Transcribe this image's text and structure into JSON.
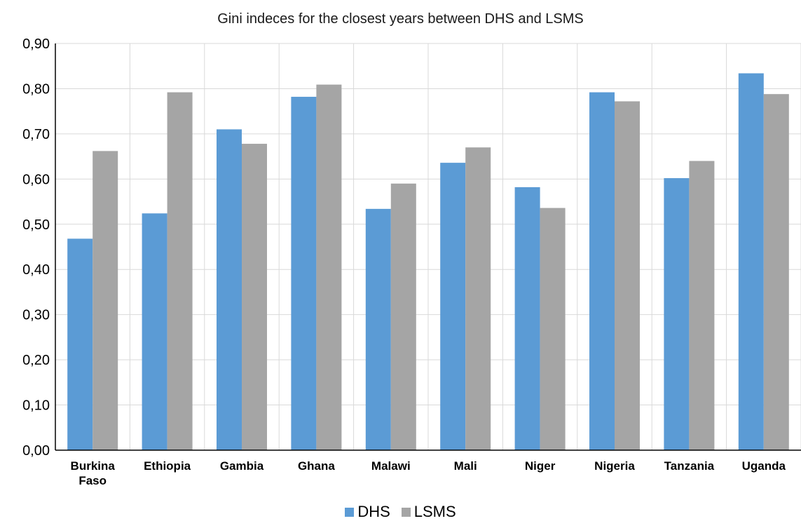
{
  "chart_data": {
    "type": "bar",
    "title": "Gini indeces for the closest years between DHS and LSMS",
    "categories": [
      "Burkina\nFaso",
      "Ethiopia",
      "Gambia",
      "Ghana",
      "Malawi",
      "Mali",
      "Niger",
      "Nigeria",
      "Tanzania",
      "Uganda"
    ],
    "series": [
      {
        "name": "DHS",
        "color": "#5b9bd5",
        "values": [
          0.468,
          0.524,
          0.71,
          0.782,
          0.534,
          0.636,
          0.582,
          0.792,
          0.602,
          0.834
        ]
      },
      {
        "name": "LSMS",
        "color": "#a5a5a5",
        "values": [
          0.662,
          0.792,
          0.678,
          0.809,
          0.59,
          0.67,
          0.536,
          0.772,
          0.64,
          0.788
        ]
      }
    ],
    "ylim": [
      0,
      0.9
    ],
    "yticks": [
      "0,00",
      "0,10",
      "0,20",
      "0,30",
      "0,40",
      "0,50",
      "0,60",
      "0,70",
      "0,80",
      "0,90"
    ],
    "grid": true,
    "legend_position": "bottom",
    "xlabel": "",
    "ylabel": ""
  }
}
